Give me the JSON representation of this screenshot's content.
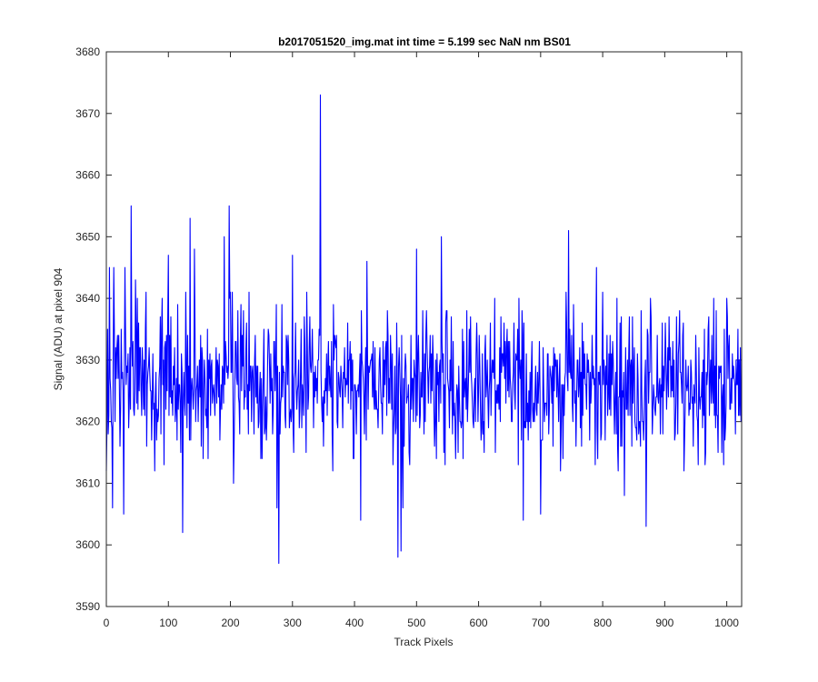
{
  "chart_data": {
    "type": "line",
    "title": "b2017051520_img.mat int time = 5.199 sec  NaN nm BS01",
    "xlabel": "Track Pixels",
    "ylabel": "Signal (ADU) at pixel 904",
    "xlim": [
      0,
      1024
    ],
    "ylim": [
      3590,
      3680
    ],
    "xticks": [
      "0",
      "100",
      "200",
      "300",
      "400",
      "500",
      "600",
      "700",
      "800",
      "900",
      "1000"
    ],
    "yticks": [
      "3590",
      "3600",
      "3610",
      "3620",
      "3630",
      "3640",
      "3650",
      "3660",
      "3670",
      "3680"
    ],
    "grid": false,
    "series": [
      {
        "color": "#0000ff",
        "noise": {
          "count": 1024,
          "mean": 3626,
          "min": 3612,
          "max": 3641
        },
        "features": [
          [
            0,
            3612
          ],
          [
            2,
            3635
          ],
          [
            5,
            3645
          ],
          [
            8,
            3620
          ],
          [
            10,
            3606
          ],
          [
            12,
            3645
          ],
          [
            28,
            3605
          ],
          [
            30,
            3645
          ],
          [
            40,
            3655
          ],
          [
            47,
            3643
          ],
          [
            100,
            3647
          ],
          [
            123,
            3602
          ],
          [
            130,
            3619
          ],
          [
            135,
            3653
          ],
          [
            142,
            3648
          ],
          [
            190,
            3650
          ],
          [
            198,
            3655
          ],
          [
            205,
            3610
          ],
          [
            275,
            3606
          ],
          [
            278,
            3597
          ],
          [
            300,
            3647
          ],
          [
            340,
            3623
          ],
          [
            345,
            3673
          ],
          [
            348,
            3620
          ],
          [
            410,
            3604
          ],
          [
            420,
            3646
          ],
          [
            470,
            3598
          ],
          [
            475,
            3599
          ],
          [
            478,
            3606
          ],
          [
            500,
            3648
          ],
          [
            540,
            3650
          ],
          [
            665,
            3640
          ],
          [
            672,
            3604
          ],
          [
            700,
            3605
          ],
          [
            745,
            3651
          ],
          [
            790,
            3645
          ],
          [
            835,
            3608
          ],
          [
            870,
            3603
          ],
          [
            1000,
            3640
          ],
          [
            1005,
            3622
          ],
          [
            1015,
            3630
          ],
          [
            1023,
            3620
          ]
        ]
      }
    ]
  }
}
